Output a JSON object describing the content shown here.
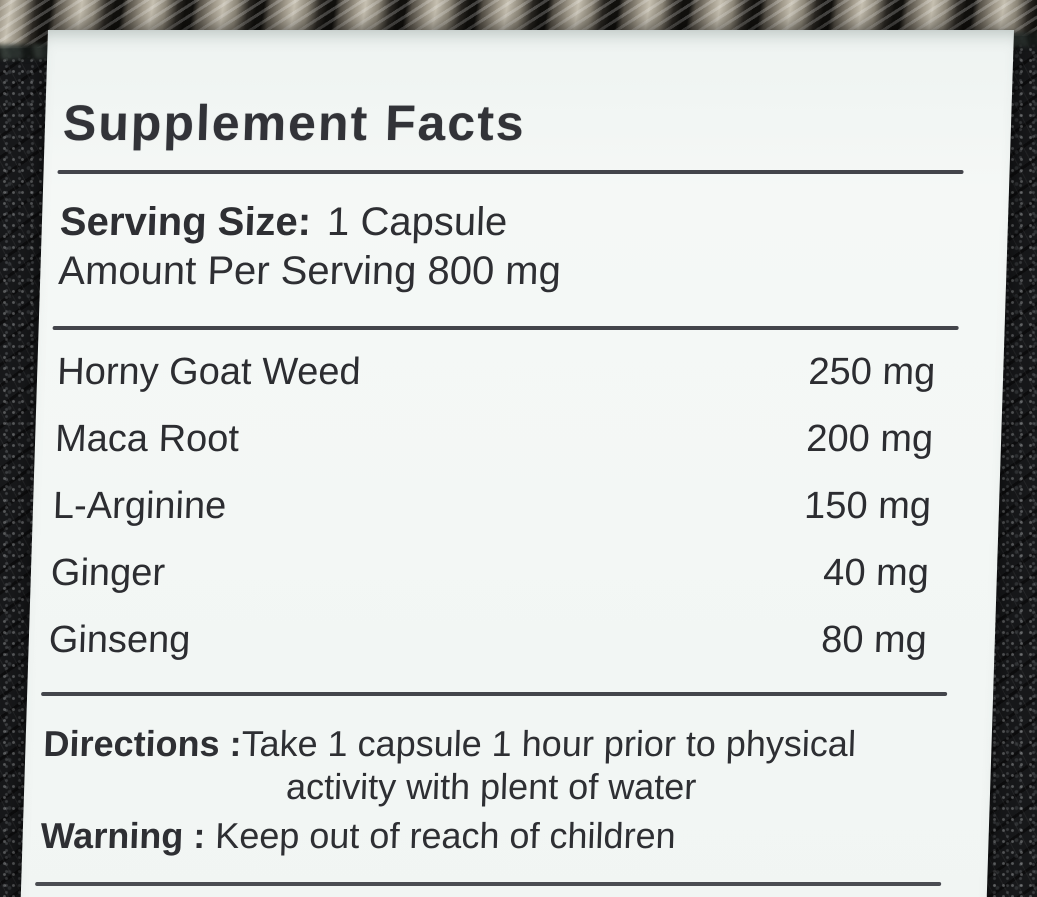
{
  "label": {
    "title": "Supplement Facts",
    "serving": {
      "size_label": "Serving Size:",
      "size_value": "1 Capsule",
      "amount_line": "Amount Per Serving 800 mg"
    },
    "ingredients": [
      {
        "name": "Horny Goat Weed",
        "amount": "250 mg"
      },
      {
        "name": "Maca Root",
        "amount": "200 mg"
      },
      {
        "name": "L-Arginine",
        "amount": "150 mg"
      },
      {
        "name": "Ginger",
        "amount": "40 mg"
      },
      {
        "name": "Ginseng",
        "amount": "80 mg"
      }
    ],
    "directions": {
      "label": "Directions :",
      "text_line1": "Take 1 capsule 1 hour prior to physical",
      "text_line2": "activity with plent of water"
    },
    "warning": {
      "label": "Warning :",
      "text": "Keep out of reach of children"
    },
    "colors": {
      "label_background": "#f3f7f5",
      "text": "#2e2f33",
      "rule": "#43454b",
      "scene_background": "#17181a",
      "rope": "#a29b8c"
    }
  }
}
